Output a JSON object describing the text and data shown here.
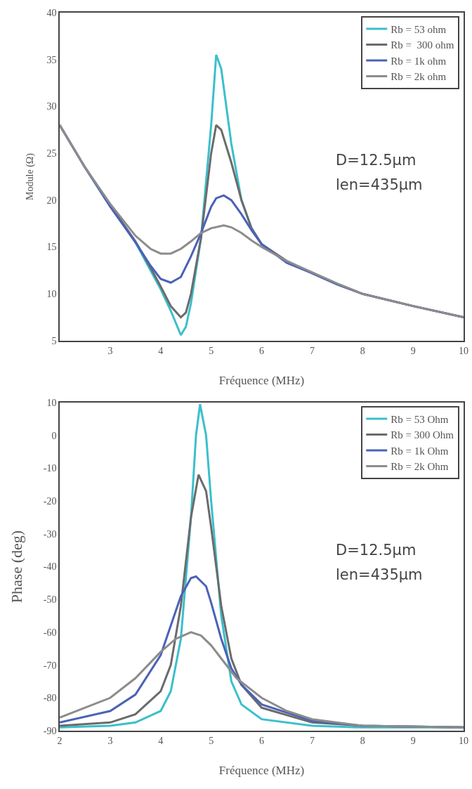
{
  "chart_data": [
    {
      "type": "line",
      "xlabel": "Fréquence (MHz)",
      "ylabel": "Module (Ω)",
      "xlim": [
        2,
        10
      ],
      "xticks": [
        3,
        4,
        5,
        6,
        7,
        8,
        9,
        10
      ],
      "ylim": [
        5,
        40
      ],
      "yticks": [
        5,
        10,
        15,
        20,
        25,
        30,
        35,
        40
      ],
      "grid": false,
      "legend": "top right",
      "annotations": [
        "D=12.5µm",
        "len=435µm"
      ],
      "series": [
        {
          "name": "Rb = 53 ohm",
          "color": "#3bbfcc",
          "x": [
            3,
            3.5,
            3.8,
            4,
            4.2,
            4.4,
            4.5,
            4.6,
            4.8,
            5,
            5.1,
            5.2,
            5.4,
            5.6,
            5.8,
            6
          ],
          "values": [
            19.5,
            15.5,
            12.5,
            10.5,
            8.2,
            5.6,
            6.5,
            9,
            16,
            28,
            35.5,
            34,
            26,
            20,
            17,
            15.3
          ]
        },
        {
          "name": "Rb =  300 ohm",
          "color": "#6b6b6b",
          "x": [
            2,
            2.5,
            3,
            3.5,
            3.8,
            4,
            4.2,
            4.4,
            4.5,
            4.6,
            4.8,
            5,
            5.1,
            5.2,
            5.4,
            5.6,
            5.8,
            6,
            6.5,
            7,
            7.5,
            8,
            9,
            10
          ],
          "values": [
            28,
            23.5,
            19.5,
            15.6,
            12.8,
            10.8,
            8.7,
            7.5,
            8,
            10,
            16,
            25,
            28,
            27.5,
            24,
            20,
            17,
            15.3,
            13.5,
            12.2,
            11,
            10,
            8.7,
            7.5
          ]
        },
        {
          "name": "Rb = 1k ohm",
          "color": "#4a62b8",
          "x": [
            2,
            2.5,
            3,
            3.5,
            3.8,
            4,
            4.2,
            4.4,
            4.6,
            4.8,
            5,
            5.1,
            5.25,
            5.4,
            5.6,
            5.8,
            6,
            6.5,
            7,
            7.5,
            8,
            9,
            10
          ],
          "values": [
            28,
            23.5,
            19.3,
            15.5,
            13,
            11.6,
            11.2,
            11.8,
            14,
            16.5,
            19.3,
            20.2,
            20.5,
            20,
            18.5,
            16.8,
            15.3,
            13.3,
            12.2,
            11,
            10,
            8.7,
            7.5
          ]
        },
        {
          "name": "Rb = 2k ohm",
          "color": "#8c8c8c",
          "x": [
            2,
            2.5,
            3,
            3.5,
            3.8,
            4,
            4.2,
            4.4,
            4.6,
            4.8,
            5,
            5.25,
            5.4,
            5.6,
            5.8,
            6,
            6.5,
            7,
            7.5,
            8,
            9,
            10
          ],
          "values": [
            28,
            23.5,
            19.6,
            16.2,
            14.8,
            14.3,
            14.3,
            14.8,
            15.6,
            16.5,
            17,
            17.3,
            17.1,
            16.5,
            15.7,
            15,
            13.5,
            12.3,
            11.1,
            10,
            8.7,
            7.5
          ]
        }
      ]
    },
    {
      "type": "line",
      "xlabel": "Fréquence (MHz)",
      "ylabel": "Phase (deg)",
      "xlim": [
        2,
        10
      ],
      "xticks": [
        2,
        3,
        4,
        5,
        6,
        7,
        8,
        9,
        10
      ],
      "ylim": [
        -90,
        10
      ],
      "yticks": [
        -90,
        -80,
        -70,
        -60,
        -50,
        -40,
        -30,
        -20,
        -10,
        0,
        10
      ],
      "grid": false,
      "legend": "top right",
      "annotations": [
        "D=12.5µm",
        "len=435µm"
      ],
      "series": [
        {
          "name": "Rb = 53 Ohm",
          "color": "#3bbfcc",
          "x": [
            2,
            3,
            3.5,
            4,
            4.2,
            4.4,
            4.6,
            4.7,
            4.78,
            4.9,
            5,
            5.2,
            5.4,
            5.6,
            6,
            7,
            8,
            10
          ],
          "values": [
            -89,
            -88.5,
            -87.5,
            -84,
            -78,
            -62,
            -25,
            0,
            9.5,
            0,
            -20,
            -55,
            -75,
            -82,
            -86.5,
            -88.5,
            -89,
            -89
          ]
        },
        {
          "name": "Rb = 300 Ohm",
          "color": "#6b6b6b",
          "x": [
            2,
            3,
            3.5,
            4,
            4.2,
            4.4,
            4.6,
            4.75,
            4.9,
            5,
            5.2,
            5.4,
            5.6,
            6,
            7,
            8,
            10
          ],
          "values": [
            -88.5,
            -87.5,
            -85,
            -78,
            -70,
            -52,
            -25,
            -12,
            -17,
            -28,
            -52,
            -68,
            -76,
            -83,
            -87.5,
            -88.5,
            -89
          ]
        },
        {
          "name": "Rb = 1k Ohm",
          "color": "#4a62b8",
          "x": [
            2,
            3,
            3.5,
            4,
            4.2,
            4.4,
            4.6,
            4.7,
            4.9,
            5,
            5.2,
            5.4,
            5.6,
            6,
            7,
            8,
            10
          ],
          "values": [
            -87.5,
            -84,
            -79,
            -67,
            -58,
            -49,
            -43.5,
            -43,
            -46,
            -51,
            -62,
            -71,
            -76,
            -82,
            -87,
            -88.5,
            -89
          ]
        },
        {
          "name": "Rb = 2k Ohm",
          "color": "#8c8c8c",
          "x": [
            2,
            3,
            3.5,
            4,
            4.3,
            4.6,
            4.8,
            5,
            5.2,
            5.5,
            6,
            6.5,
            7,
            8,
            10
          ],
          "values": [
            -86,
            -80,
            -74,
            -66,
            -62,
            -60,
            -61,
            -64,
            -68,
            -74,
            -80,
            -84,
            -86.5,
            -88.5,
            -89
          ]
        }
      ]
    }
  ]
}
